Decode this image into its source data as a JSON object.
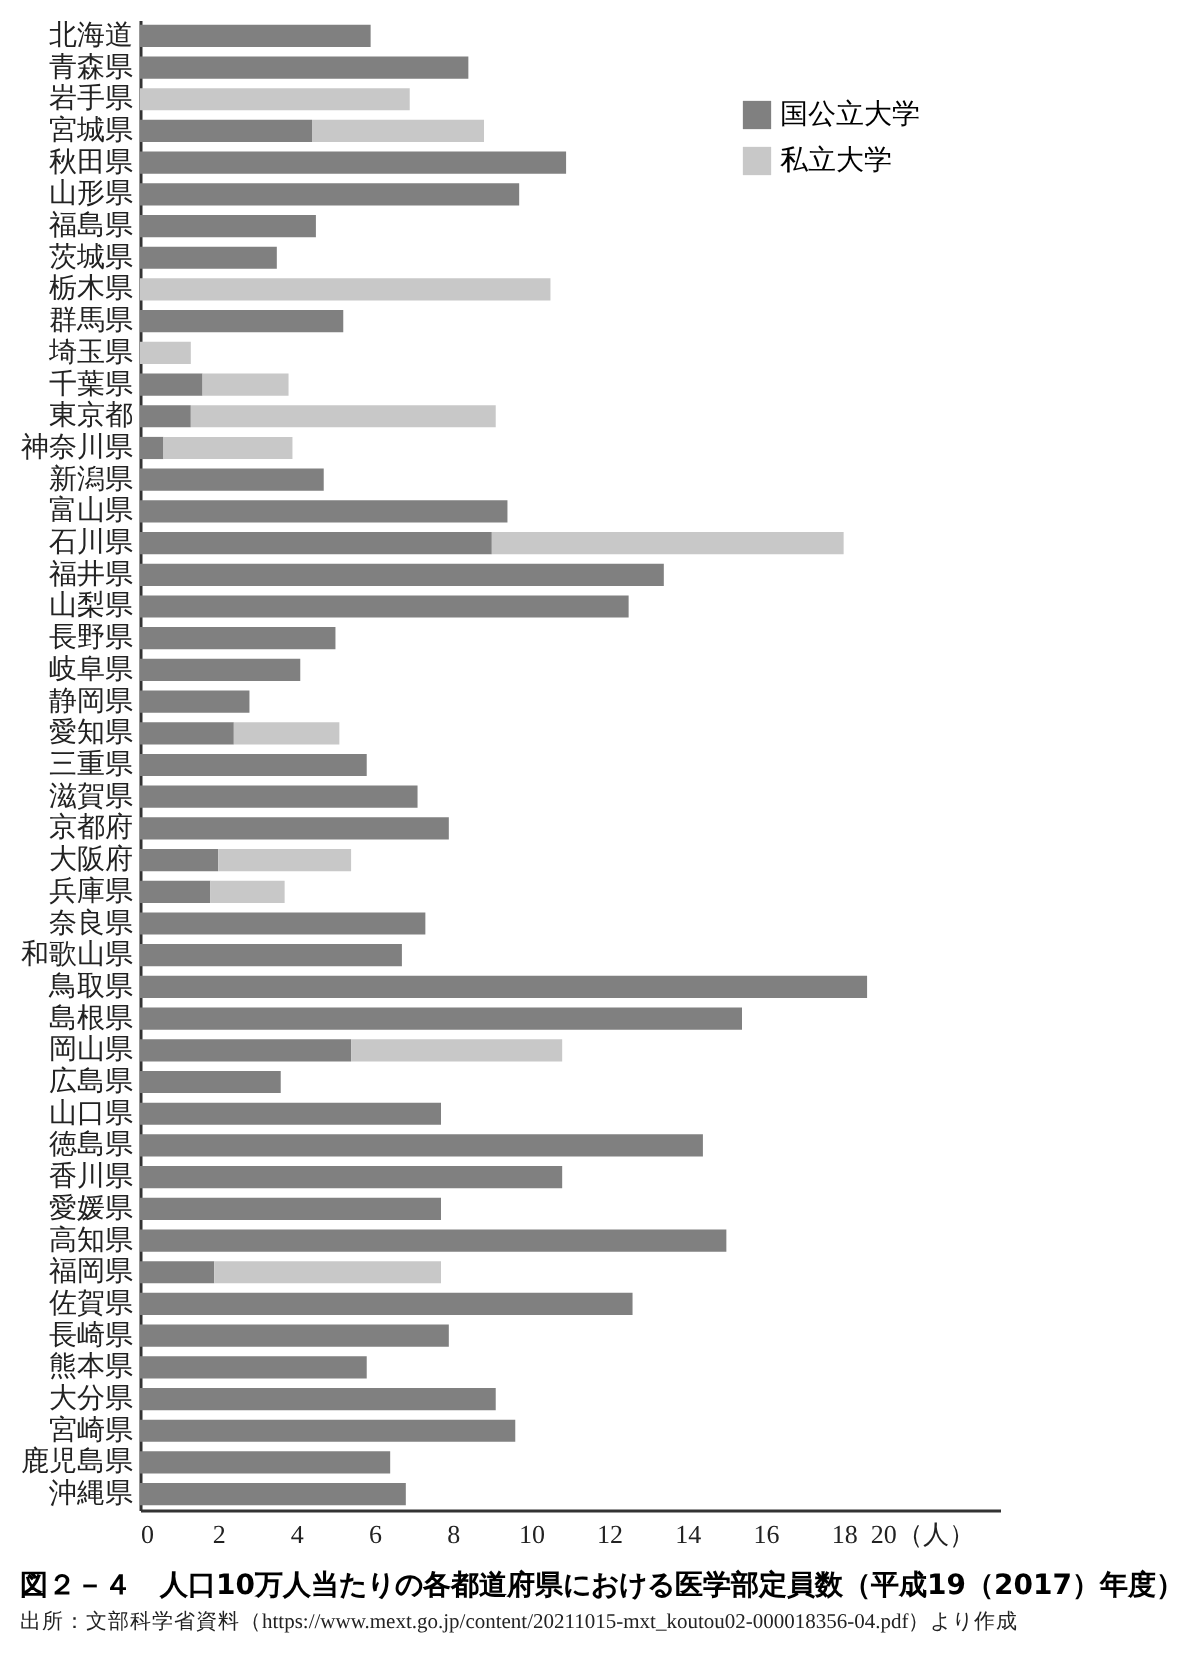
{
  "chart_data": {
    "type": "bar",
    "orientation": "horizontal",
    "stacked": true,
    "title": "図２－４　人口10万人当たりの各都道府県における医学部定員数（平成19（2017）年度）",
    "annotations": [
      "出所：文部科学省資料（https://www.mext.go.jp/content/20211015-mxt_koutou02-000018356-04.pdf）より作成"
    ],
    "categories": [
      "北海道",
      "青森県",
      "岩手県",
      "宮城県",
      "秋田県",
      "山形県",
      "福島県",
      "茨城県",
      "栃木県",
      "群馬県",
      "埼玉県",
      "千葉県",
      "東京都",
      "神奈川県",
      "新潟県",
      "富山県",
      "石川県",
      "福井県",
      "山梨県",
      "長野県",
      "岐阜県",
      "静岡県",
      "愛知県",
      "三重県",
      "滋賀県",
      "京都府",
      "大阪府",
      "兵庫県",
      "奈良県",
      "和歌山県",
      "鳥取県",
      "島根県",
      "岡山県",
      "広島県",
      "山口県",
      "徳島県",
      "香川県",
      "愛媛県",
      "高知県",
      "福岡県",
      "佐賀県",
      "長崎県",
      "熊本県",
      "大分県",
      "宮崎県",
      "鹿児島県",
      "沖縄県"
    ],
    "series": [
      {
        "name": "国公立大学",
        "color": "#808080",
        "values": [
          5.9,
          8.4,
          null,
          4.4,
          10.9,
          9.7,
          4.5,
          3.5,
          null,
          5.2,
          null,
          1.6,
          1.3,
          0.6,
          4.7,
          9.4,
          9.0,
          13.4,
          12.5,
          5.0,
          4.1,
          2.8,
          2.4,
          5.8,
          7.1,
          7.9,
          2.0,
          1.8,
          7.3,
          6.7,
          18.6,
          15.4,
          5.4,
          3.6,
          7.7,
          14.4,
          10.8,
          7.7,
          15.0,
          1.9,
          12.6,
          7.9,
          5.8,
          9.1,
          9.6,
          6.4,
          6.8
        ]
      },
      {
        "name": "私立大学",
        "color": "#c8c8c8",
        "values": [
          null,
          null,
          6.9,
          4.4,
          null,
          null,
          null,
          null,
          10.5,
          null,
          1.3,
          2.2,
          7.8,
          3.3,
          null,
          null,
          9.0,
          null,
          null,
          null,
          null,
          null,
          2.7,
          null,
          null,
          null,
          3.4,
          1.9,
          null,
          null,
          null,
          null,
          5.4,
          null,
          null,
          null,
          null,
          null,
          null,
          5.8,
          null,
          null,
          null,
          null,
          null,
          null,
          null
        ]
      }
    ],
    "xlim": [
      0,
      22
    ],
    "xticks": [
      0,
      2,
      4,
      6,
      8,
      10,
      12,
      14,
      16,
      18,
      {
        "value": 20,
        "label": "20（人）"
      }
    ],
    "legend": "top right"
  }
}
